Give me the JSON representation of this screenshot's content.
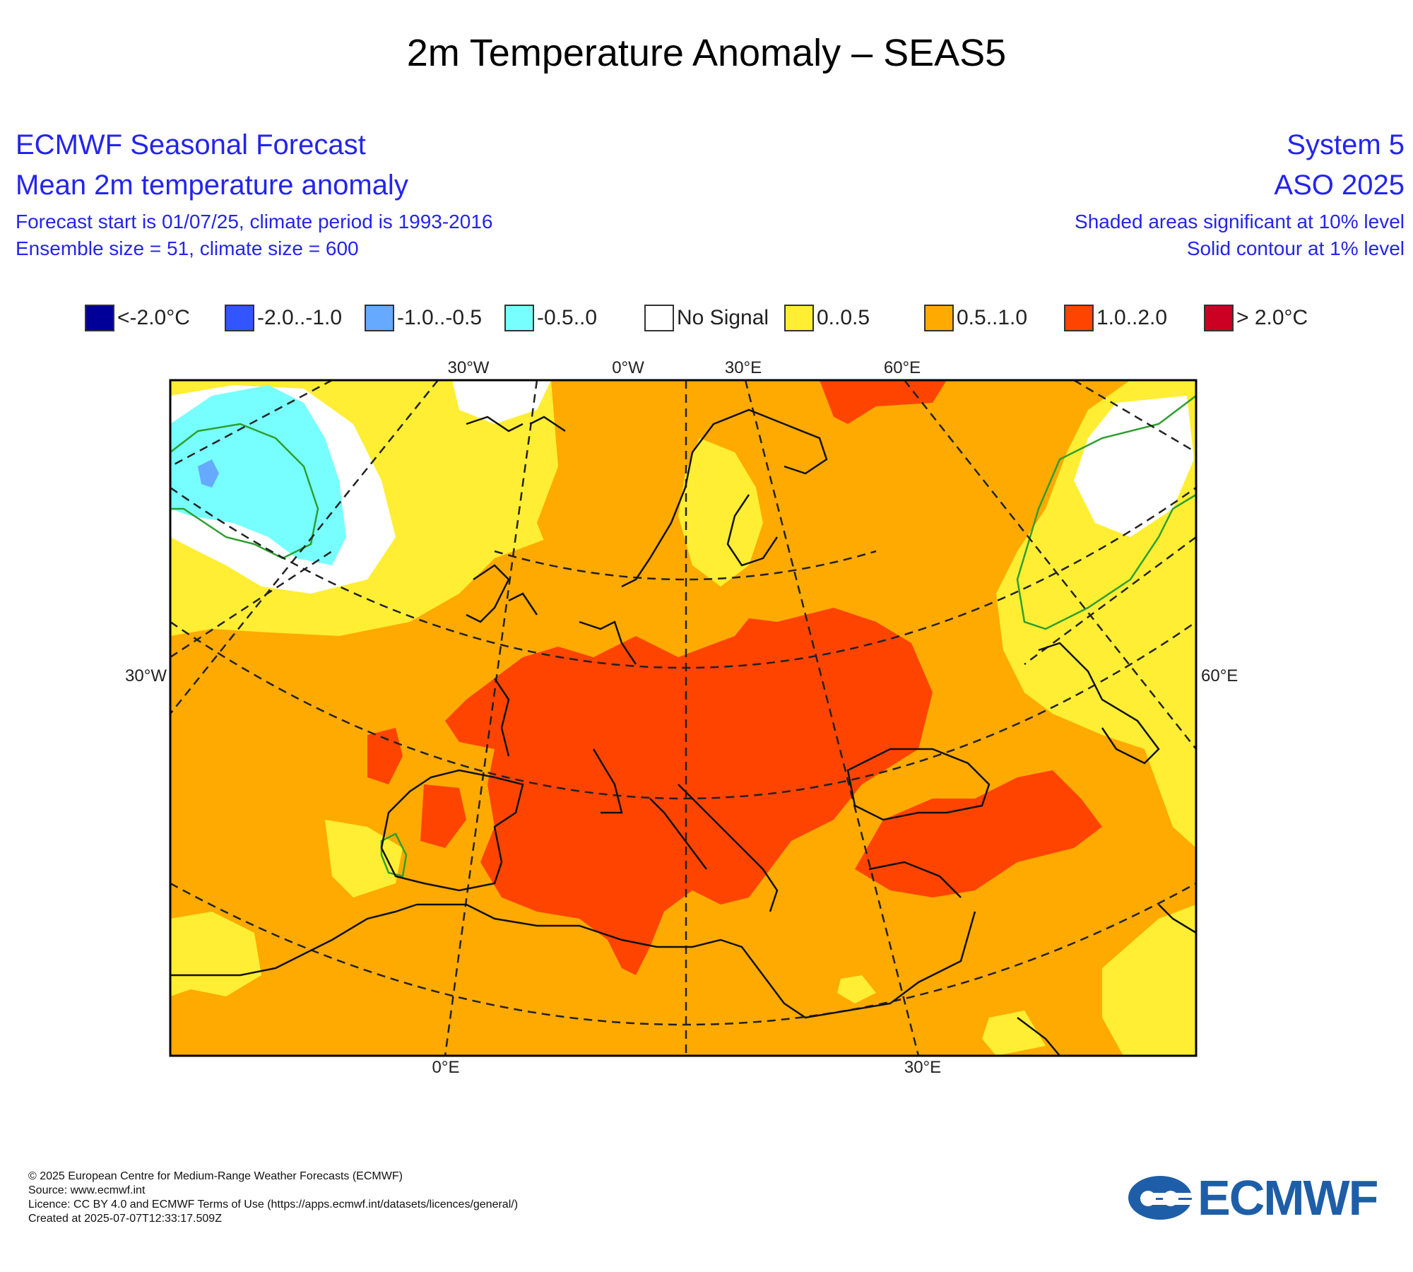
{
  "page_title": "2m Temperature Anomaly – SEAS5",
  "header": {
    "left_line1": "ECMWF Seasonal Forecast",
    "left_line2": "Mean 2m temperature anomaly",
    "left_line3": "Forecast start is 01/07/25, climate period is 1993-2016",
    "left_line4": "Ensemble size = 51, climate size = 600",
    "right_line1": "System 5",
    "right_line2": "ASO 2025",
    "right_line3": "Shaded areas significant at 10% level",
    "right_line4": "Solid contour at 1% level"
  },
  "legend": [
    {
      "label": "<-2.0°C",
      "color": "#000099"
    },
    {
      "label": "-2.0..-1.0",
      "color": "#3355ff"
    },
    {
      "label": "-1.0..-0.5",
      "color": "#66aaff"
    },
    {
      "label": "-0.5..0",
      "color": "#77ffff"
    },
    {
      "label": "No Signal",
      "color": "#ffffff"
    },
    {
      "label": "0..0.5",
      "color": "#ffee33"
    },
    {
      "label": "0.5..1.0",
      "color": "#ffaa00"
    },
    {
      "label": "1.0..2.0",
      "color": "#ff4400"
    },
    {
      "label": "> 2.0°C",
      "color": "#cc0022"
    }
  ],
  "map_axis_labels": {
    "top": [
      "30°W",
      "0°W",
      "30°E",
      "60°E"
    ],
    "left": "30°W",
    "right": "60°E",
    "bottom": [
      "0°E",
      "30°E"
    ]
  },
  "footer": {
    "line1": "© 2025 European Centre for Medium-Range Weather Forecasts (ECMWF)",
    "line2": "Source: www.ecmwf.int",
    "line3": "Licence: CC BY 4.0 and ECMWF Terms of Use (https://apps.ecmwf.int/datasets/licences/general/)",
    "line4": "Created at 2025-07-07T12:33:17.509Z"
  },
  "logo_text": "ECMWF"
}
